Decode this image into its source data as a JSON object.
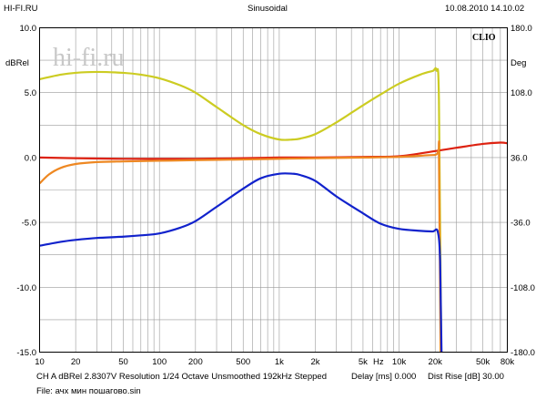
{
  "header": {
    "left": "HI-FI.RU",
    "center": "Sinusoidal",
    "right": "10.08.2010 14.10.02"
  },
  "watermark": "hi-fi.ru",
  "badge": "CLIO",
  "footer": {
    "line1": "CH A   dBRel 2.8307V   Resolution 1/24 Octave   Unsmoothed   192kHz   Stepped",
    "delay": "Delay [ms] 0.000",
    "dist": "Dist Rise [dB] 30.00",
    "line2": "File: ачх мин пошагово.sin"
  },
  "chart_data": {
    "type": "line",
    "xscale": "log",
    "xlim": [
      10,
      80000
    ],
    "ylim": [
      -15,
      10
    ],
    "y2lim": [
      -180,
      180
    ],
    "ylabel": "dBRel",
    "y2label": "Deg",
    "xlabel": "Hz",
    "grid": true,
    "xticks": [
      "10",
      "20",
      "50",
      "100",
      "200",
      "500",
      "1k",
      "2k",
      "5k",
      "10k",
      "20k",
      "50k",
      "80k"
    ],
    "yticks": [
      "10.0",
      "5.0",
      "0.0",
      "-5.0",
      "-10.0",
      "-15.0"
    ],
    "y2ticks": [
      "180.0",
      "108.0",
      "36.0",
      "-36.0",
      "-108.0",
      "-180.0"
    ],
    "series": [
      {
        "color": "#cccc22",
        "axis": "right",
        "x": [
          10,
          15,
          20,
          30,
          50,
          70,
          100,
          150,
          200,
          300,
          500,
          700,
          1000,
          1300,
          1500,
          2000,
          3000,
          5000,
          7000,
          10000,
          15000,
          19000,
          20500,
          21500,
          22500
        ],
        "y": [
          123,
          128,
          130,
          131,
          130,
          128,
          124,
          116,
          108,
          92,
          72,
          62,
          56,
          56,
          57,
          62,
          75,
          94,
          106,
          118,
          128,
          132,
          133,
          100,
          -180
        ]
      },
      {
        "color": "#dd2211",
        "axis": "left",
        "x": [
          10,
          20,
          50,
          100,
          200,
          500,
          1000,
          2000,
          5000,
          10000,
          20000,
          30000,
          50000,
          70000,
          80000
        ],
        "y": [
          0,
          -0.05,
          -0.1,
          -0.1,
          -0.1,
          -0.05,
          0,
          0,
          0.05,
          0.1,
          0.5,
          0.75,
          1.05,
          1.15,
          1.1
        ]
      },
      {
        "color": "#ee8822",
        "axis": "left",
        "x": [
          10,
          12,
          15,
          20,
          30,
          50,
          100,
          200,
          500,
          1000,
          2000,
          5000,
          10000,
          20000,
          21500,
          22200
        ],
        "y": [
          -2.0,
          -1.3,
          -0.8,
          -0.5,
          -0.35,
          -0.3,
          -0.25,
          -0.2,
          -0.15,
          -0.1,
          -0.05,
          0,
          0.05,
          0.2,
          0.1,
          -15
        ]
      },
      {
        "color": "#1122cc",
        "axis": "left",
        "x": [
          10,
          15,
          20,
          30,
          50,
          70,
          100,
          150,
          200,
          300,
          500,
          700,
          1000,
          1300,
          1500,
          2000,
          3000,
          5000,
          7000,
          10000,
          15000,
          19000,
          21000,
          22000,
          22600
        ],
        "y": [
          -6.8,
          -6.5,
          -6.35,
          -6.2,
          -6.1,
          -6.0,
          -5.85,
          -5.4,
          -4.9,
          -3.8,
          -2.4,
          -1.6,
          -1.25,
          -1.25,
          -1.35,
          -1.8,
          -3.0,
          -4.3,
          -5.1,
          -5.5,
          -5.65,
          -5.7,
          -5.7,
          -8.0,
          -15
        ]
      }
    ]
  }
}
